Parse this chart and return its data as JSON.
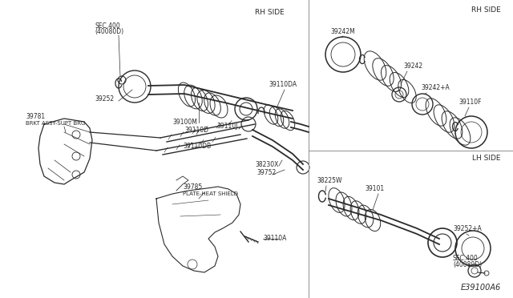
{
  "bg_color": "#ffffff",
  "line_color": "#2a2a2a",
  "fig_width": 6.4,
  "fig_height": 3.72,
  "diagram_code": "E39100A6",
  "rh_side_label": "RH SIDE",
  "lh_side_label": "LH SIDE"
}
